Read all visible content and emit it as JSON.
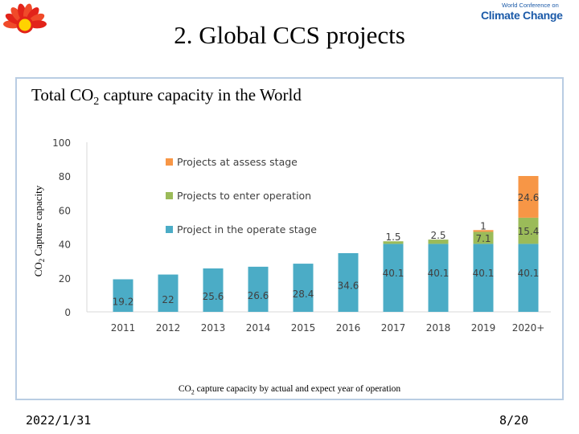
{
  "slide": {
    "title": "2. Global CCS projects",
    "brand_small": "World Conference on",
    "brand_big": "Climate Change",
    "chart_heading": "Total CO",
    "chart_heading_sub": "2",
    "chart_heading_rest": " capture capacity in the World",
    "caption": "CO",
    "caption_sub": "2",
    "caption_rest": " capture capacity by actual and expect year of operation",
    "date": "2022/1/31",
    "page": "8/20"
  },
  "colors": {
    "operate": "#4bacc6",
    "enter": "#9bbb59",
    "assess": "#f79646",
    "logo_red": "#e2231a",
    "logo_yellow": "#ffd200",
    "brand_blue": "#1b5aa8"
  },
  "chart_data": {
    "type": "bar",
    "stacked": true,
    "ylabel": "CO",
    "ylabel_sub": "2",
    "ylabel_rest": " Capture capacity",
    "ylim": [
      0,
      100
    ],
    "yticks": [
      0,
      20,
      40,
      60,
      80,
      100
    ],
    "categories": [
      "2011",
      "2012",
      "2013",
      "2014",
      "2015",
      "2016",
      "2017",
      "2018",
      "2019",
      "2020+"
    ],
    "series": [
      {
        "name": "Project in the operate stage",
        "color": "#4bacc6",
        "values": [
          19.2,
          22,
          25.6,
          26.6,
          28.4,
          34.6,
          40.1,
          40.1,
          40.1,
          40.1
        ]
      },
      {
        "name": "Projects to enter operation",
        "color": "#9bbb59",
        "values": [
          0,
          0,
          0,
          0,
          0,
          0,
          1.5,
          2.5,
          7.1,
          15.4
        ]
      },
      {
        "name": "Projects at assess stage",
        "color": "#f79646",
        "values": [
          0,
          0,
          0,
          0,
          0,
          0,
          0,
          0,
          1,
          24.6
        ]
      }
    ],
    "legend_position": "top-left",
    "grid": false
  }
}
